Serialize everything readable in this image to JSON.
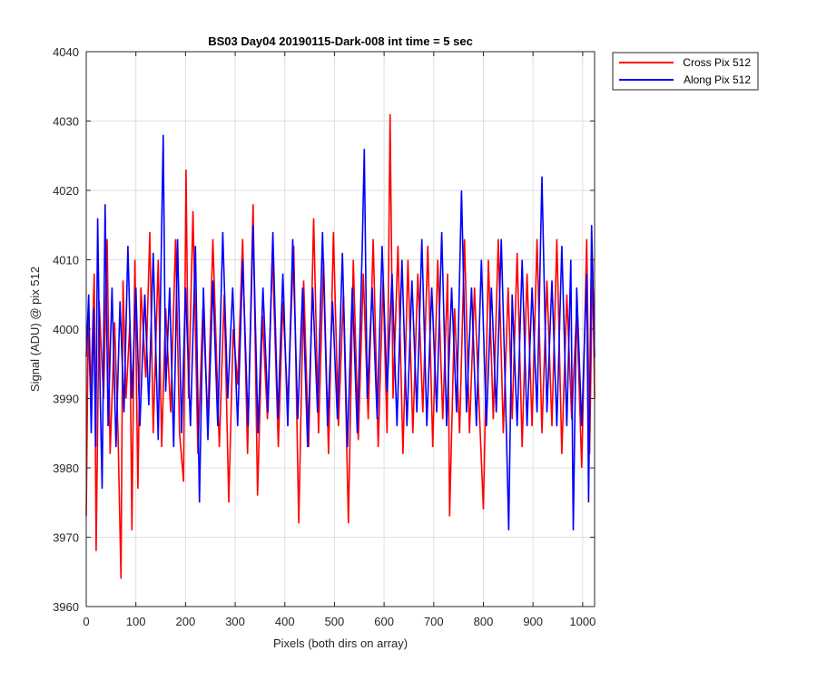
{
  "chart_data": {
    "type": "line",
    "title": "BS03 Day04 20190115-Dark-008 int time = 5 sec",
    "xlabel": "Pixels (both dirs on array)",
    "ylabel": "Signal (ADU) @ pix 512",
    "xlim": [
      0,
      1024
    ],
    "ylim": [
      3960,
      4040
    ],
    "xticks": [
      0,
      100,
      200,
      300,
      400,
      500,
      600,
      700,
      800,
      900,
      1000
    ],
    "yticks": [
      3960,
      3970,
      3980,
      3990,
      4000,
      4010,
      4020,
      4030,
      4040
    ],
    "grid": true,
    "legend_position": "outside top-right",
    "series": [
      {
        "name": "Cross Pix 512",
        "color": "#ff0000",
        "points": [
          [
            0,
            3973
          ],
          [
            4,
            4001
          ],
          [
            9,
            3990
          ],
          [
            16,
            4008
          ],
          [
            20,
            3968
          ],
          [
            26,
            4004
          ],
          [
            35,
            3990
          ],
          [
            42,
            4013
          ],
          [
            48,
            3982
          ],
          [
            57,
            4001
          ],
          [
            64,
            3985
          ],
          [
            70,
            3964
          ],
          [
            74,
            4007
          ],
          [
            80,
            3990
          ],
          [
            88,
            4001
          ],
          [
            92,
            3971
          ],
          [
            98,
            4010
          ],
          [
            104,
            3977
          ],
          [
            110,
            4006
          ],
          [
            120,
            3993
          ],
          [
            128,
            4014
          ],
          [
            135,
            3985
          ],
          [
            145,
            4010
          ],
          [
            152,
            3983
          ],
          [
            160,
            4003
          ],
          [
            170,
            3988
          ],
          [
            180,
            4013
          ],
          [
            188,
            3985
          ],
          [
            196,
            3978
          ],
          [
            201,
            4023
          ],
          [
            206,
            3990
          ],
          [
            215,
            4017
          ],
          [
            225,
            3982
          ],
          [
            235,
            4003
          ],
          [
            245,
            3987
          ],
          [
            255,
            4013
          ],
          [
            268,
            3983
          ],
          [
            278,
            4005
          ],
          [
            287,
            3975
          ],
          [
            296,
            4000
          ],
          [
            305,
            3992
          ],
          [
            315,
            4013
          ],
          [
            325,
            3982
          ],
          [
            336,
            4018
          ],
          [
            345,
            3976
          ],
          [
            355,
            4002
          ],
          [
            365,
            3987
          ],
          [
            375,
            4011
          ],
          [
            387,
            3983
          ],
          [
            396,
            4004
          ],
          [
            406,
            3989
          ],
          [
            418,
            4012
          ],
          [
            428,
            3972
          ],
          [
            438,
            4007
          ],
          [
            448,
            3983
          ],
          [
            458,
            4016
          ],
          [
            468,
            3985
          ],
          [
            478,
            4010
          ],
          [
            488,
            3982
          ],
          [
            498,
            4014
          ],
          [
            508,
            3986
          ],
          [
            518,
            4005
          ],
          [
            528,
            3972
          ],
          [
            538,
            4010
          ],
          [
            548,
            3984
          ],
          [
            558,
            4008
          ],
          [
            568,
            3987
          ],
          [
            578,
            4013
          ],
          [
            588,
            3983
          ],
          [
            598,
            4007
          ],
          [
            606,
            3985
          ],
          [
            612,
            4031
          ],
          [
            618,
            3990
          ],
          [
            628,
            4012
          ],
          [
            638,
            3982
          ],
          [
            648,
            4010
          ],
          [
            658,
            3985
          ],
          [
            668,
            4008
          ],
          [
            678,
            3988
          ],
          [
            688,
            4012
          ],
          [
            698,
            3983
          ],
          [
            708,
            4010
          ],
          [
            718,
            3987
          ],
          [
            728,
            4008
          ],
          [
            732,
            3973
          ],
          [
            742,
            4003
          ],
          [
            752,
            3985
          ],
          [
            762,
            4013
          ],
          [
            772,
            3985
          ],
          [
            782,
            4006
          ],
          [
            792,
            3988
          ],
          [
            800,
            3974
          ],
          [
            810,
            4010
          ],
          [
            820,
            3987
          ],
          [
            830,
            4013
          ],
          [
            840,
            3985
          ],
          [
            850,
            4006
          ],
          [
            858,
            3987
          ],
          [
            868,
            4011
          ],
          [
            878,
            3983
          ],
          [
            888,
            4008
          ],
          [
            898,
            3986
          ],
          [
            908,
            4013
          ],
          [
            918,
            3985
          ],
          [
            928,
            4007
          ],
          [
            938,
            3986
          ],
          [
            948,
            4013
          ],
          [
            958,
            3982
          ],
          [
            968,
            4005
          ],
          [
            978,
            3987
          ],
          [
            988,
            4003
          ],
          [
            998,
            3980
          ],
          [
            1008,
            4013
          ],
          [
            1014,
            3982
          ],
          [
            1020,
            4010
          ],
          [
            1024,
            3990
          ]
        ]
      },
      {
        "name": "Along Pix 512",
        "color": "#0000ff",
        "points": [
          [
            0,
            3996
          ],
          [
            5,
            4005
          ],
          [
            10,
            3985
          ],
          [
            15,
            4003
          ],
          [
            19,
            3983
          ],
          [
            23,
            4016
          ],
          [
            28,
            3991
          ],
          [
            32,
            3977
          ],
          [
            38,
            4018
          ],
          [
            44,
            3986
          ],
          [
            52,
            4006
          ],
          [
            60,
            3983
          ],
          [
            68,
            4004
          ],
          [
            76,
            3988
          ],
          [
            84,
            4012
          ],
          [
            92,
            3990
          ],
          [
            100,
            4006
          ],
          [
            108,
            3986
          ],
          [
            118,
            4005
          ],
          [
            126,
            3989
          ],
          [
            135,
            4011
          ],
          [
            145,
            3984
          ],
          [
            150,
            4006
          ],
          [
            155,
            4028
          ],
          [
            160,
            3991
          ],
          [
            168,
            4006
          ],
          [
            176,
            3983
          ],
          [
            184,
            4013
          ],
          [
            192,
            3985
          ],
          [
            200,
            4006
          ],
          [
            210,
            3986
          ],
          [
            220,
            4012
          ],
          [
            228,
            3975
          ],
          [
            236,
            4006
          ],
          [
            245,
            3984
          ],
          [
            255,
            4007
          ],
          [
            265,
            3986
          ],
          [
            275,
            4014
          ],
          [
            285,
            3990
          ],
          [
            295,
            4006
          ],
          [
            305,
            3986
          ],
          [
            315,
            4010
          ],
          [
            326,
            3986
          ],
          [
            336,
            4015
          ],
          [
            346,
            3985
          ],
          [
            356,
            4006
          ],
          [
            366,
            3988
          ],
          [
            376,
            4014
          ],
          [
            386,
            3987
          ],
          [
            396,
            4008
          ],
          [
            406,
            3986
          ],
          [
            416,
            4013
          ],
          [
            426,
            3987
          ],
          [
            436,
            4006
          ],
          [
            446,
            3983
          ],
          [
            456,
            4006
          ],
          [
            466,
            3988
          ],
          [
            476,
            4014
          ],
          [
            486,
            3986
          ],
          [
            496,
            4004
          ],
          [
            506,
            3987
          ],
          [
            516,
            4011
          ],
          [
            526,
            3983
          ],
          [
            536,
            4006
          ],
          [
            546,
            3985
          ],
          [
            556,
            4012
          ],
          [
            560,
            4026
          ],
          [
            566,
            3990
          ],
          [
            576,
            4006
          ],
          [
            586,
            3987
          ],
          [
            596,
            4012
          ],
          [
            606,
            3991
          ],
          [
            616,
            4008
          ],
          [
            626,
            3986
          ],
          [
            636,
            4010
          ],
          [
            646,
            3986
          ],
          [
            656,
            4007
          ],
          [
            666,
            3988
          ],
          [
            676,
            4013
          ],
          [
            686,
            3986
          ],
          [
            696,
            4006
          ],
          [
            706,
            3988
          ],
          [
            716,
            4014
          ],
          [
            726,
            3986
          ],
          [
            736,
            4006
          ],
          [
            746,
            3988
          ],
          [
            756,
            4020
          ],
          [
            766,
            3988
          ],
          [
            776,
            4006
          ],
          [
            786,
            3986
          ],
          [
            796,
            4010
          ],
          [
            806,
            3986
          ],
          [
            816,
            4006
          ],
          [
            826,
            3988
          ],
          [
            836,
            4013
          ],
          [
            846,
            3986
          ],
          [
            851,
            3971
          ],
          [
            858,
            4005
          ],
          [
            868,
            3986
          ],
          [
            878,
            4010
          ],
          [
            888,
            3986
          ],
          [
            898,
            4006
          ],
          [
            908,
            3988
          ],
          [
            918,
            4022
          ],
          [
            928,
            3988
          ],
          [
            938,
            4007
          ],
          [
            948,
            3986
          ],
          [
            958,
            4012
          ],
          [
            968,
            3986
          ],
          [
            976,
            4010
          ],
          [
            981,
            3971
          ],
          [
            988,
            4006
          ],
          [
            998,
            3986
          ],
          [
            1008,
            4008
          ],
          [
            1012,
            3975
          ],
          [
            1018,
            4015
          ],
          [
            1024,
            3996
          ]
        ]
      }
    ]
  }
}
